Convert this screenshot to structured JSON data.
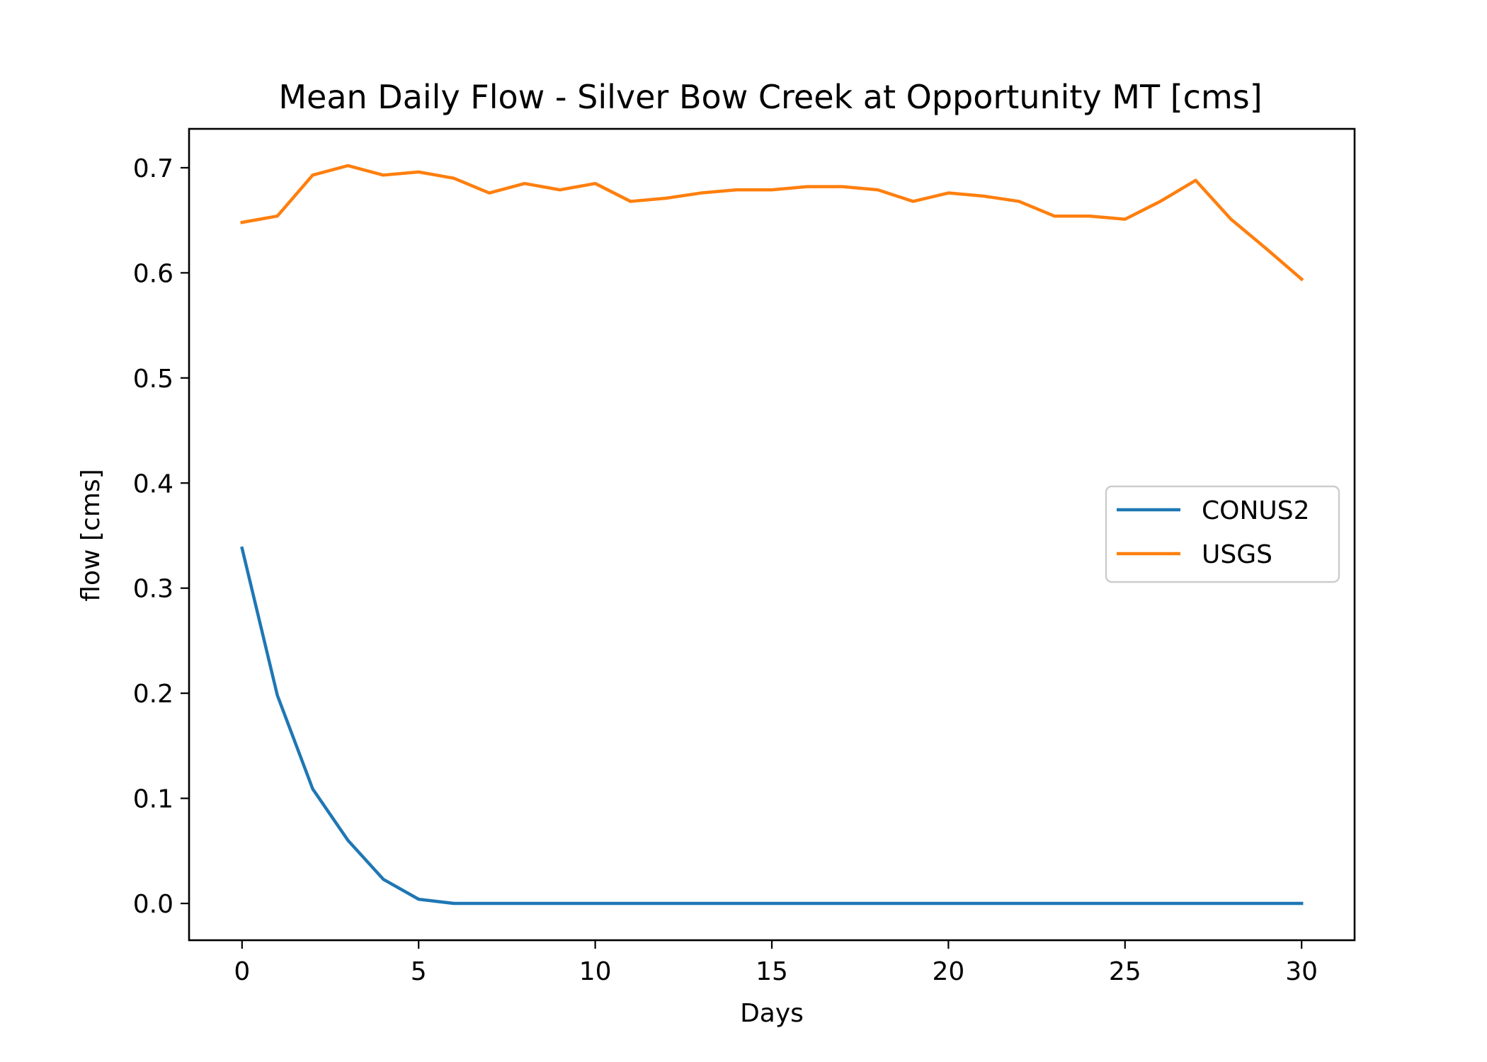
{
  "chart_data": {
    "type": "line",
    "title": "Mean Daily Flow - Silver Bow Creek at Opportunity MT [cms]",
    "xlabel": "Days",
    "ylabel": "flow [cms]",
    "xlim": [
      -1.5,
      31.5
    ],
    "ylim": [
      -0.035,
      0.737
    ],
    "xticks": [
      0,
      5,
      10,
      15,
      20,
      25,
      30
    ],
    "xtick_labels": [
      "0",
      "5",
      "10",
      "15",
      "20",
      "25",
      "30"
    ],
    "yticks": [
      0.0,
      0.1,
      0.2,
      0.3,
      0.4,
      0.5,
      0.6,
      0.7
    ],
    "ytick_labels": [
      "0.0",
      "0.1",
      "0.2",
      "0.3",
      "0.4",
      "0.5",
      "0.6",
      "0.7"
    ],
    "grid": false,
    "legend_position": "center-right",
    "x": [
      0,
      1,
      2,
      3,
      4,
      5,
      6,
      7,
      8,
      9,
      10,
      11,
      12,
      13,
      14,
      15,
      16,
      17,
      18,
      19,
      20,
      21,
      22,
      23,
      24,
      25,
      26,
      27,
      28,
      29,
      30
    ],
    "series": [
      {
        "name": "CONUS2",
        "color": "#1f77b4",
        "values": [
          0.338,
          0.198,
          0.109,
          0.06,
          0.023,
          0.004,
          0.0,
          0.0,
          0.0,
          0.0,
          0.0,
          0.0,
          0.0,
          0.0,
          0.0,
          0.0,
          0.0,
          0.0,
          0.0,
          0.0,
          0.0,
          0.0,
          0.0,
          0.0,
          0.0,
          0.0,
          0.0,
          0.0,
          0.0,
          0.0,
          0.0
        ]
      },
      {
        "name": "USGS",
        "color": "#ff7f0e",
        "values": [
          0.648,
          0.654,
          0.693,
          0.702,
          0.693,
          0.696,
          0.69,
          0.676,
          0.685,
          0.679,
          0.685,
          0.668,
          0.671,
          0.676,
          0.679,
          0.679,
          0.682,
          0.682,
          0.679,
          0.668,
          0.676,
          0.673,
          0.668,
          0.654,
          0.654,
          0.651,
          0.668,
          0.688,
          0.651,
          0.623,
          0.594
        ]
      }
    ]
  }
}
